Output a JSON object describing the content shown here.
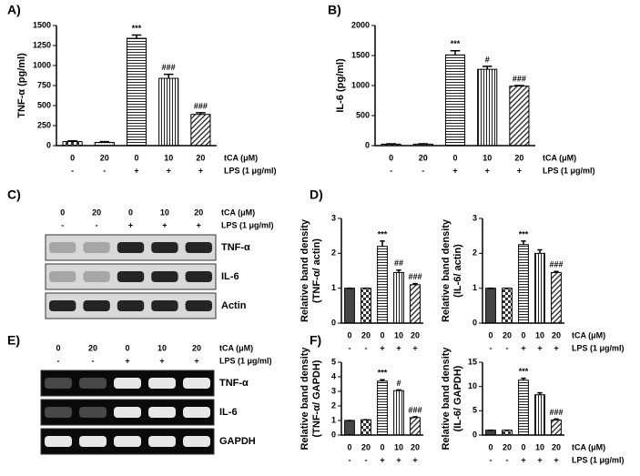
{
  "chart_data": [
    {
      "type": "bar",
      "title": "A)",
      "ylabel": [
        "TNF-α (pg/ml)"
      ],
      "categories": [
        "0",
        "20",
        "0",
        "10",
        "20"
      ],
      "lps": [
        "-",
        "-",
        "+",
        "+",
        "+"
      ],
      "row_labels": [
        "tCA (μM)",
        "LPS (1 μg/ml)"
      ],
      "values": [
        50,
        40,
        1340,
        840,
        390
      ],
      "errors": [
        10,
        10,
        40,
        50,
        20
      ],
      "annotations": [
        null,
        null,
        "***",
        "###",
        "###"
      ],
      "patterns": [
        "checker",
        "dots",
        "hlines",
        "vlines",
        "diag"
      ],
      "ylim": [
        0,
        1500
      ],
      "yticks": [
        0,
        250,
        500,
        750,
        1000,
        1250,
        1500
      ]
    },
    {
      "type": "bar",
      "title": "B)",
      "ylabel": [
        "IL-6 (pg/ml)"
      ],
      "categories": [
        "0",
        "20",
        "0",
        "10",
        "20"
      ],
      "lps": [
        "-",
        "-",
        "+",
        "+",
        "+"
      ],
      "row_labels": [
        "tCA (μM)",
        "LPS (1 μg/ml)"
      ],
      "values": [
        25,
        25,
        1510,
        1270,
        990
      ],
      "errors": [
        5,
        5,
        70,
        50,
        10
      ],
      "annotations": [
        null,
        null,
        "***",
        "#",
        "###"
      ],
      "patterns": [
        "checker",
        "dots",
        "hlines",
        "vlines",
        "diag"
      ],
      "ylim": [
        0,
        2000
      ],
      "yticks": [
        0,
        500,
        1000,
        1500,
        2000
      ]
    },
    {
      "type": "bar",
      "title": "D)",
      "ylabel": [
        "Relative band density",
        "(TNF-α/ actin)"
      ],
      "categories": [
        "0",
        "20",
        "0",
        "10",
        "20"
      ],
      "lps": [
        "-",
        "-",
        "+",
        "+",
        "+"
      ],
      "values": [
        1,
        1,
        2.2,
        1.45,
        1.1
      ],
      "errors": [
        0,
        0,
        0.15,
        0.07,
        0.03
      ],
      "annotations": [
        null,
        null,
        "***",
        "##",
        "###"
      ],
      "patterns": [
        "solid",
        "checker",
        "hlines",
        "vlines",
        "diag"
      ],
      "ylim": [
        0,
        3
      ],
      "yticks": [
        0,
        1,
        2,
        3
      ]
    },
    {
      "type": "bar",
      "ylabel": [
        "Relative band density",
        "(IL-6/ actin)"
      ],
      "categories": [
        "0",
        "20",
        "0",
        "10",
        "20"
      ],
      "lps": [
        "-",
        "-",
        "+",
        "+",
        "+"
      ],
      "row_labels": [
        "tCA (μM)",
        "LPS (1 μg/ml)"
      ],
      "values": [
        1,
        1,
        2.25,
        2.0,
        1.45
      ],
      "errors": [
        0,
        0,
        0.1,
        0.1,
        0.03
      ],
      "annotations": [
        null,
        null,
        "***",
        null,
        "###"
      ],
      "patterns": [
        "solid",
        "checker",
        "hlines",
        "vlines",
        "diag"
      ],
      "ylim": [
        0,
        3
      ],
      "yticks": [
        0,
        1,
        2,
        3
      ]
    },
    {
      "type": "bar",
      "title": "F)",
      "ylabel": [
        "Relative band density",
        "(TNF-α/ GAPDH)"
      ],
      "categories": [
        "0",
        "20",
        "0",
        "10",
        "20"
      ],
      "lps": [
        "-",
        "-",
        "+",
        "+",
        "+"
      ],
      "values": [
        1,
        1.05,
        3.7,
        3.05,
        1.2
      ],
      "errors": [
        0,
        0,
        0.1,
        0.05,
        0.05
      ],
      "annotations": [
        null,
        null,
        "***",
        "#",
        "###"
      ],
      "patterns": [
        "solid",
        "checker",
        "hlines",
        "vlines",
        "diag"
      ],
      "ylim": [
        0,
        5
      ],
      "yticks": [
        0,
        1,
        2,
        3,
        4,
        5
      ]
    },
    {
      "type": "bar",
      "ylabel": [
        "Relative band density",
        "(IL-6/ GAPDH)"
      ],
      "categories": [
        "0",
        "20",
        "0",
        "10",
        "20"
      ],
      "lps": [
        "-",
        "-",
        "+",
        "+",
        "+"
      ],
      "row_labels": [
        "tCA (μM)",
        "LPS (1 μg/ml)"
      ],
      "values": [
        1,
        1,
        11.3,
        8.3,
        3.1
      ],
      "errors": [
        0,
        0,
        0.4,
        0.4,
        0.2
      ],
      "annotations": [
        null,
        null,
        "***",
        null,
        "###"
      ],
      "patterns": [
        "solid",
        "checker",
        "hlines",
        "vlines",
        "diag"
      ],
      "ylim": [
        0,
        15
      ],
      "yticks": [
        0,
        5,
        10,
        15
      ]
    }
  ],
  "blots": [
    {
      "title": "C)",
      "style": "western",
      "lanes": [
        "0",
        "20",
        "0",
        "10",
        "20"
      ],
      "lps": [
        "-",
        "-",
        "+",
        "+",
        "+"
      ],
      "row_labels": [
        "tCA (μM)",
        "LPS (1 μg/ml)"
      ],
      "bands": [
        "TNF-α",
        "IL-6",
        "Actin"
      ]
    },
    {
      "title": "E)",
      "style": "gel",
      "lanes": [
        "0",
        "20",
        "0",
        "10",
        "20"
      ],
      "lps": [
        "-",
        "-",
        "+",
        "+",
        "+"
      ],
      "row_labels": [
        "tCA (μM)",
        "LPS (1 μg/ml)"
      ],
      "bands": [
        "TNF-α",
        "IL-6",
        "GAPDH"
      ]
    }
  ]
}
